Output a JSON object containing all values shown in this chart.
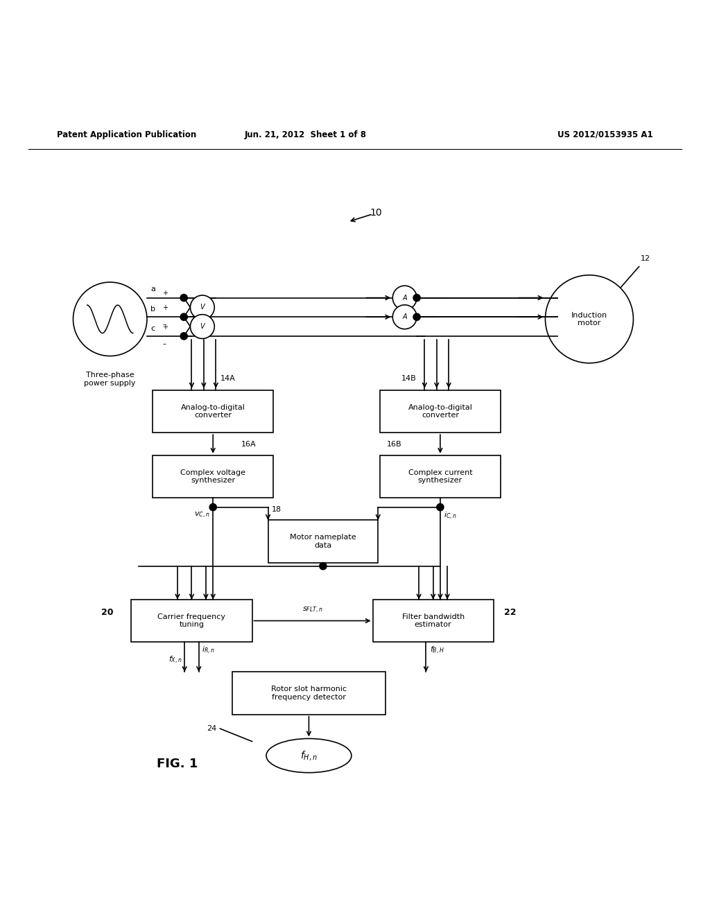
{
  "bg_color": "#ffffff",
  "header_left": "Patent Application Publication",
  "header_mid": "Jun. 21, 2012  Sheet 1 of 8",
  "header_right": "US 2012/0153935 A1",
  "fig_label": "FIG. 1",
  "system_number": "10",
  "motor_label": "12"
}
